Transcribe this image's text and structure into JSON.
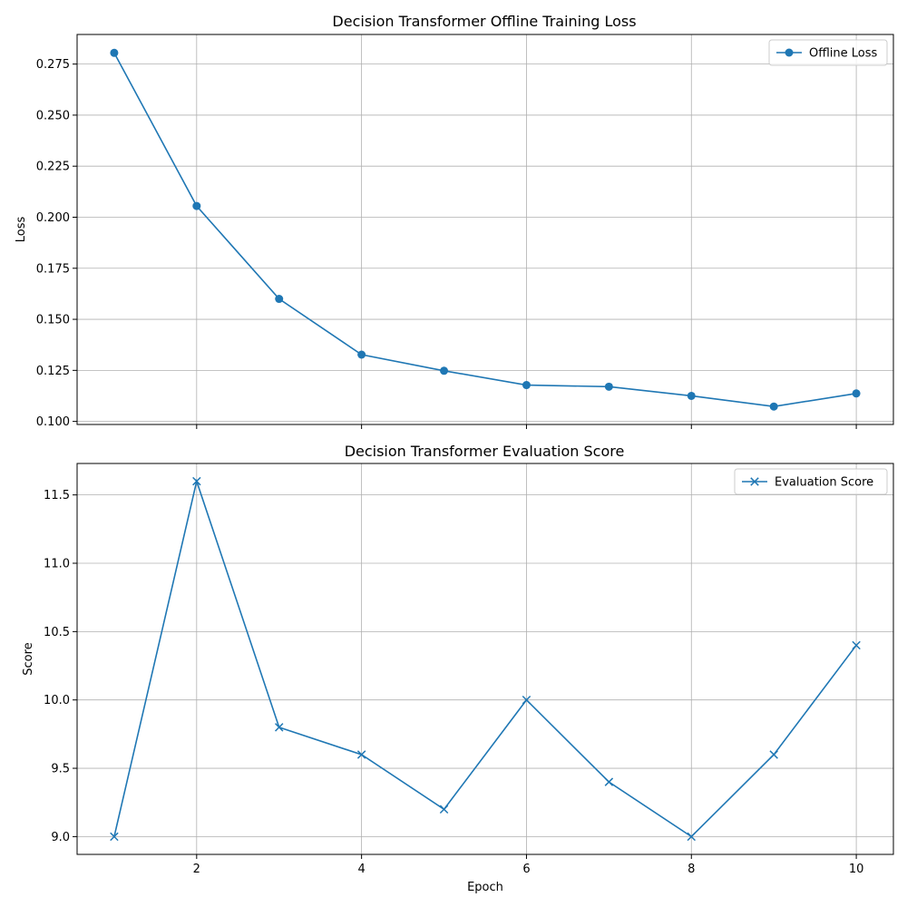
{
  "chart_data": [
    {
      "type": "line",
      "title": "Decision Transformer Offline Training Loss",
      "xlabel": "",
      "ylabel": "Loss",
      "x": [
        1,
        2,
        3,
        4,
        5,
        6,
        7,
        8,
        9,
        10
      ],
      "series": [
        {
          "name": "Offline Loss",
          "values": [
            0.2805,
            0.2055,
            0.16,
            0.1327,
            0.1248,
            0.1178,
            0.117,
            0.1125,
            0.1073,
            0.1137
          ],
          "marker": "circle",
          "color": "#1f77b4"
        }
      ],
      "xlim": [
        0.55,
        10.45
      ],
      "ylim": [
        0.0985,
        0.2895
      ],
      "xticks": [
        2,
        4,
        6,
        8,
        10
      ],
      "xtick_labels": [
        "",
        "",
        "",
        "",
        ""
      ],
      "yticks": [
        0.1,
        0.125,
        0.15,
        0.175,
        0.2,
        0.225,
        0.25,
        0.275
      ],
      "ytick_labels": [
        "0.100",
        "0.125",
        "0.150",
        "0.175",
        "0.200",
        "0.225",
        "0.250",
        "0.275"
      ],
      "grid": true,
      "legend_position": "top-right"
    },
    {
      "type": "line",
      "title": "Decision Transformer Evaluation Score",
      "xlabel": "Epoch",
      "ylabel": "Score",
      "x": [
        1,
        2,
        3,
        4,
        5,
        6,
        7,
        8,
        9,
        10
      ],
      "series": [
        {
          "name": "Evaluation Score",
          "values": [
            9.0,
            11.6,
            9.8,
            9.6,
            9.2,
            10.0,
            9.4,
            9.0,
            9.6,
            10.4
          ],
          "marker": "x",
          "color": "#1f77b4"
        }
      ],
      "xlim": [
        0.55,
        10.45
      ],
      "ylim": [
        8.87,
        11.73
      ],
      "xticks": [
        2,
        4,
        6,
        8,
        10
      ],
      "xtick_labels": [
        "2",
        "4",
        "6",
        "8",
        "10"
      ],
      "yticks": [
        9.0,
        9.5,
        10.0,
        10.5,
        11.0,
        11.5
      ],
      "ytick_labels": [
        "9.0",
        "9.5",
        "10.0",
        "10.5",
        "11.0",
        "11.5"
      ],
      "grid": true,
      "legend_position": "top-right"
    }
  ]
}
